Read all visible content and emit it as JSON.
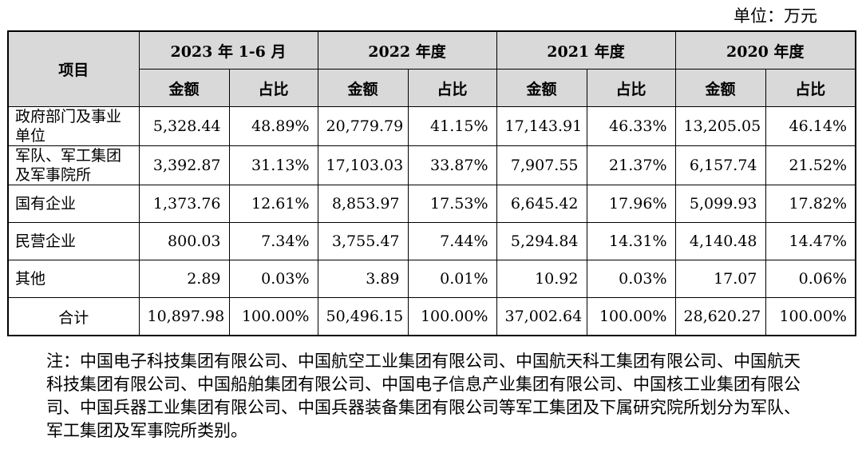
{
  "unit_label": "单位：万元",
  "header": {
    "item": "项目",
    "periods": [
      "2023 年 1-6 月",
      "2022 年度",
      "2021 年度",
      "2020 年度"
    ],
    "amount": "金额",
    "ratio": "占比"
  },
  "rows": [
    {
      "category": "政府部门及事业单位",
      "values": [
        "5,328.44",
        "48.89%",
        "20,779.79",
        "41.15%",
        "17,143.91",
        "46.33%",
        "13,205.05",
        "46.14%"
      ]
    },
    {
      "category": "军队、军工集团及军事院所",
      "values": [
        "3,392.87",
        "31.13%",
        "17,103.03",
        "33.87%",
        "7,907.55",
        "21.37%",
        "6,157.74",
        "21.52%"
      ]
    },
    {
      "category": "国有企业",
      "values": [
        "1,373.76",
        "12.61%",
        "8,853.97",
        "17.53%",
        "6,645.42",
        "17.96%",
        "5,099.93",
        "17.82%"
      ]
    },
    {
      "category": "民营企业",
      "values": [
        "800.03",
        "7.34%",
        "3,755.47",
        "7.44%",
        "5,294.84",
        "14.31%",
        "4,140.48",
        "14.47%"
      ]
    },
    {
      "category": "其他",
      "values": [
        "2.89",
        "0.03%",
        "3.89",
        "0.01%",
        "10.92",
        "0.03%",
        "17.07",
        "0.06%"
      ]
    }
  ],
  "total": {
    "category": "合计",
    "values": [
      "10,897.98",
      "100.00%",
      "50,496.15",
      "100.00%",
      "37,002.64",
      "100.00%",
      "28,620.27",
      "100.00%"
    ]
  },
  "note": "注：中国电子科技集团有限公司、中国航空工业集团有限公司、中国航天科工集团有限公司、中国航天科技集团有限公司、中国船舶集团有限公司、中国电子信息产业集团有限公司、中国核工业集团有限公司、中国兵器工业集团有限公司、中国兵器装备集团有限公司等军工集团及下属研究院所划分为军队、军工集团及军事院所类别。"
}
